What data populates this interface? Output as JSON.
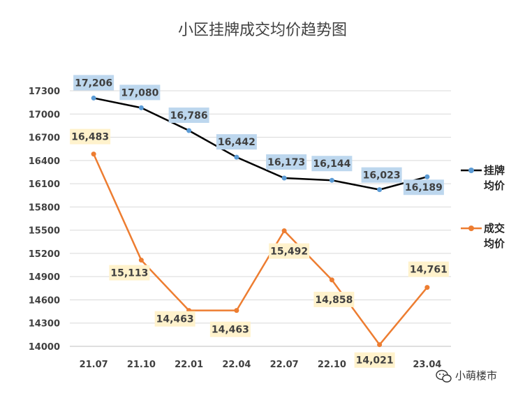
{
  "chart_data": {
    "type": "line",
    "title": "小区挂牌成交均价趋势图",
    "categories": [
      "21.07",
      "21.10",
      "22.01",
      "22.04",
      "22.07",
      "22.10",
      "23.01",
      "23.04"
    ],
    "y_ticks": [
      "17300",
      "17000",
      "16700",
      "16400",
      "16100",
      "15800",
      "15500",
      "15200",
      "14900",
      "14600",
      "14300",
      "14000"
    ],
    "ylim": [
      14000,
      17300
    ],
    "grid": true,
    "legend_position": "right",
    "series": [
      {
        "name": "挂牌均价",
        "legend_lines": [
          "挂牌",
          "均价"
        ],
        "line_color": "#000000",
        "marker_color": "#5B9BD5",
        "label_bg": "#BDD7EE",
        "values": [
          17206,
          17080,
          16786,
          16442,
          16173,
          16144,
          16023,
          16189
        ],
        "labels": [
          "17,206",
          "17,080",
          "16,786",
          "16,442",
          "16,173",
          "16,144",
          "16,023",
          "16,189"
        ]
      },
      {
        "name": "成交均价",
        "legend_lines": [
          "成交",
          "均价"
        ],
        "line_color": "#ED7D31",
        "marker_color": "#ED7D31",
        "label_bg": "#FFF2CC",
        "values": [
          16483,
          15113,
          14463,
          14463,
          15492,
          14858,
          14021,
          14761
        ],
        "labels": [
          "16,483",
          "15,113",
          "14,463",
          "14,463",
          "15,492",
          "14,858",
          "14,021",
          "14,761"
        ]
      }
    ]
  },
  "watermark": {
    "icon": "wechat-icon",
    "text": "小萌楼市"
  }
}
